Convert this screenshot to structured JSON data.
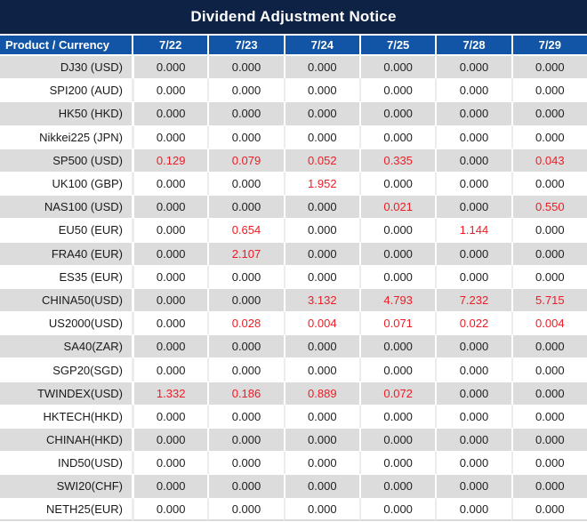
{
  "title": "Dividend Adjustment Notice",
  "colors": {
    "title_bg": "#0e2245",
    "header_bg": "#1254a5",
    "row_alt_bg": "#dcdcdc",
    "value_color": "#1f1f1f",
    "highlight_color": "#ee1c25"
  },
  "chart_data": {
    "type": "table",
    "title": "Dividend Adjustment Notice",
    "columns": [
      "Product / Currency",
      "7/22",
      "7/23",
      "7/24",
      "7/25",
      "7/28",
      "7/29"
    ],
    "zero_display": "0.000",
    "rows": [
      {
        "product": "DJ30 (USD)",
        "values": [
          "0.000",
          "0.000",
          "0.000",
          "0.000",
          "0.000",
          "0.000"
        ]
      },
      {
        "product": "SPI200 (AUD)",
        "values": [
          "0.000",
          "0.000",
          "0.000",
          "0.000",
          "0.000",
          "0.000"
        ]
      },
      {
        "product": "HK50 (HKD)",
        "values": [
          "0.000",
          "0.000",
          "0.000",
          "0.000",
          "0.000",
          "0.000"
        ]
      },
      {
        "product": "Nikkei225 (JPN)",
        "values": [
          "0.000",
          "0.000",
          "0.000",
          "0.000",
          "0.000",
          "0.000"
        ]
      },
      {
        "product": "SP500 (USD)",
        "values": [
          "0.129",
          "0.079",
          "0.052",
          "0.335",
          "0.000",
          "0.043"
        ]
      },
      {
        "product": "UK100 (GBP)",
        "values": [
          "0.000",
          "0.000",
          "1.952",
          "0.000",
          "0.000",
          "0.000"
        ]
      },
      {
        "product": "NAS100 (USD)",
        "values": [
          "0.000",
          "0.000",
          "0.000",
          "0.021",
          "0.000",
          "0.550"
        ]
      },
      {
        "product": "EU50 (EUR)",
        "values": [
          "0.000",
          "0.654",
          "0.000",
          "0.000",
          "1.144",
          "0.000"
        ]
      },
      {
        "product": "FRA40 (EUR)",
        "values": [
          "0.000",
          "2.107",
          "0.000",
          "0.000",
          "0.000",
          "0.000"
        ]
      },
      {
        "product": "ES35 (EUR)",
        "values": [
          "0.000",
          "0.000",
          "0.000",
          "0.000",
          "0.000",
          "0.000"
        ]
      },
      {
        "product": "CHINA50(USD)",
        "values": [
          "0.000",
          "0.000",
          "3.132",
          "4.793",
          "7.232",
          "5.715"
        ]
      },
      {
        "product": "US2000(USD)",
        "values": [
          "0.000",
          "0.028",
          "0.004",
          "0.071",
          "0.022",
          "0.004"
        ]
      },
      {
        "product": "SA40(ZAR)",
        "values": [
          "0.000",
          "0.000",
          "0.000",
          "0.000",
          "0.000",
          "0.000"
        ]
      },
      {
        "product": "SGP20(SGD)",
        "values": [
          "0.000",
          "0.000",
          "0.000",
          "0.000",
          "0.000",
          "0.000"
        ]
      },
      {
        "product": "TWINDEX(USD)",
        "values": [
          "1.332",
          "0.186",
          "0.889",
          "0.072",
          "0.000",
          "0.000"
        ]
      },
      {
        "product": "HKTECH(HKD)",
        "values": [
          "0.000",
          "0.000",
          "0.000",
          "0.000",
          "0.000",
          "0.000"
        ]
      },
      {
        "product": "CHINAH(HKD)",
        "values": [
          "0.000",
          "0.000",
          "0.000",
          "0.000",
          "0.000",
          "0.000"
        ]
      },
      {
        "product": "IND50(USD)",
        "values": [
          "0.000",
          "0.000",
          "0.000",
          "0.000",
          "0.000",
          "0.000"
        ]
      },
      {
        "product": "SWI20(CHF)",
        "values": [
          "0.000",
          "0.000",
          "0.000",
          "0.000",
          "0.000",
          "0.000"
        ]
      },
      {
        "product": "NETH25(EUR)",
        "values": [
          "0.000",
          "0.000",
          "0.000",
          "0.000",
          "0.000",
          "0.000"
        ]
      }
    ]
  }
}
